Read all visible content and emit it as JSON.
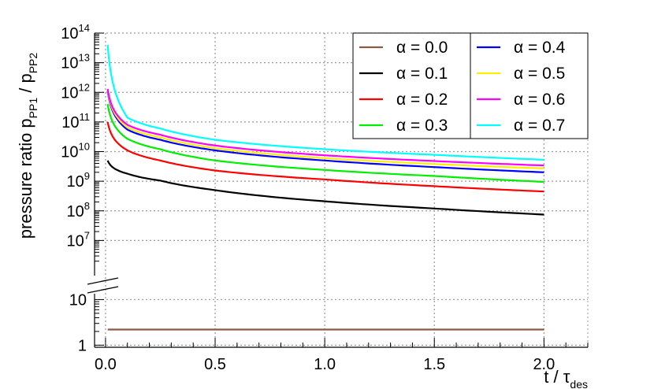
{
  "chart_data": {
    "type": "line",
    "title": "",
    "xlabel": "t / τdes",
    "ylabel": "pressure ratio pPP1 / pPP2",
    "x_axis": {
      "range": [
        -0.05,
        2.2
      ],
      "ticks": [
        {
          "value": 0.0,
          "label": "0.0"
        },
        {
          "value": 0.5,
          "label": "0.5"
        },
        {
          "value": 1.0,
          "label": "1.0"
        },
        {
          "value": 1.5,
          "label": "1.5"
        },
        {
          "value": 2.0,
          "label": "2.0"
        }
      ],
      "label_main": "t / τ",
      "label_sub": "des"
    },
    "y_axis": {
      "scale": "log",
      "broken": true,
      "upper_range": [
        1000000,
        100000000000000
      ],
      "lower_range": [
        1,
        20
      ],
      "upper_ticks": [
        {
          "value": 10000000,
          "base": "10",
          "exp": "7"
        },
        {
          "value": 100000000,
          "base": "10",
          "exp": "8"
        },
        {
          "value": 1000000000,
          "base": "10",
          "exp": "9"
        },
        {
          "value": 10000000000,
          "base": "10",
          "exp": "10"
        },
        {
          "value": 100000000000,
          "base": "10",
          "exp": "11"
        },
        {
          "value": 1000000000000,
          "base": "10",
          "exp": "12"
        },
        {
          "value": 10000000000000,
          "base": "10",
          "exp": "13"
        },
        {
          "value": 100000000000000,
          "base": "10",
          "exp": "14"
        }
      ],
      "lower_ticks": [
        {
          "value": 1,
          "label": "1"
        },
        {
          "value": 10,
          "label": "10"
        }
      ],
      "label_main": "pressure ratio p",
      "label_sub1": "PP1",
      "label_mid": " / p",
      "label_sub2": "PP2"
    },
    "grid": true,
    "legend_position": "top-right",
    "series": [
      {
        "name": "α = 0.0",
        "color": "#8b5a46",
        "x": [
          0.01,
          2.0
        ],
        "y": [
          2.2,
          2.2
        ]
      },
      {
        "name": "α = 0.1",
        "color": "#000000",
        "x": [
          0.01,
          0.1,
          0.25,
          0.5,
          1.0,
          1.5,
          2.0
        ],
        "y": [
          5000000000,
          1800000000,
          1050000000,
          500000000,
          210000000,
          120000000,
          75000000
        ]
      },
      {
        "name": "α = 0.2",
        "color": "#ff0000",
        "x": [
          0.01,
          0.1,
          0.25,
          0.5,
          1.0,
          1.5,
          2.0
        ],
        "y": [
          100000000000,
          11000000000,
          5000000000,
          2300000000,
          1150000000,
          680000000,
          450000000
        ]
      },
      {
        "name": "α = 0.3",
        "color": "#00ee00",
        "x": [
          0.01,
          0.1,
          0.25,
          0.5,
          1.0,
          1.5,
          2.0
        ],
        "y": [
          400000000000,
          27000000000,
          12000000000,
          5000000000,
          2400000000,
          1500000000,
          950000000
        ]
      },
      {
        "name": "α = 0.4",
        "color": "#0000ff",
        "x": [
          0.01,
          0.1,
          0.25,
          0.5,
          1.0,
          1.5,
          2.0
        ],
        "y": [
          1100000000000,
          55000000000,
          25000000000,
          11000000000,
          5000000000,
          3000000000,
          2000000000
        ]
      },
      {
        "name": "α = 0.5",
        "color": "#ffee00",
        "x": [
          0.01,
          0.1,
          0.25,
          0.5,
          1.0,
          1.5,
          2.0
        ],
        "y": [
          1200000000000,
          65000000000,
          30000000000,
          13000000000,
          6000000000,
          3800000000,
          2700000000
        ]
      },
      {
        "name": "α = 0.6",
        "color": "#ff00ff",
        "x": [
          0.01,
          0.1,
          0.25,
          0.5,
          1.0,
          1.5,
          2.0
        ],
        "y": [
          1300000000000,
          80000000000,
          37000000000,
          16000000000,
          7500000000,
          4800000000,
          3400000000
        ]
      },
      {
        "name": "α = 0.7",
        "color": "#00ffff",
        "x": [
          0.01,
          0.1,
          0.25,
          0.5,
          1.0,
          1.5,
          2.0
        ],
        "y": [
          40000000000000,
          140000000000,
          60000000000,
          25000000000,
          12000000000,
          7800000000,
          5300000000
        ]
      }
    ]
  }
}
